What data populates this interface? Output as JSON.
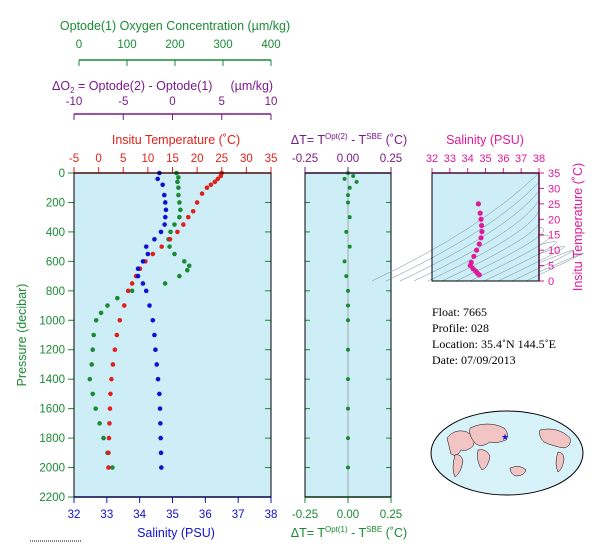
{
  "colors": {
    "oxygen": "#1a8a35",
    "doxygen": "#7a1a8a",
    "temperature": "#e0201a",
    "salinity": "#1010d0",
    "dt": "#1a8a35",
    "ts": "#e0189a",
    "panel": "#cdeef7"
  },
  "top_axes": {
    "oxygen": {
      "title": "Optode(1) Oxygen Concentration (µm/kg)",
      "ticks": [
        "0",
        "100",
        "200",
        "300",
        "400"
      ]
    },
    "doxygen": {
      "title_prefix": "ΔO",
      "title_sub": "2",
      "title_mid": " = Optode(2) - Optode(1)",
      "title_unit": "(µm/kg)",
      "ticks": [
        "-10",
        "-5",
        "0",
        "5",
        "10"
      ]
    }
  },
  "main_panel": {
    "temp_title": "Insitu Temperature (˚C)",
    "temp_ticks": [
      "-5",
      "0",
      "5",
      "10",
      "15",
      "20",
      "25",
      "30",
      "35"
    ],
    "pressure_label": "Pressure (decibar)",
    "pressure_ticks": [
      "0",
      "200",
      "400",
      "600",
      "800",
      "1000",
      "1200",
      "1400",
      "1600",
      "1800",
      "2000",
      "2200"
    ],
    "sal_label": "Salinity (PSU)",
    "sal_ticks": [
      "32",
      "33",
      "34",
      "35",
      "36",
      "37",
      "38"
    ]
  },
  "dt_panel": {
    "top_title_prefix": "ΔT= T",
    "top_sup1": "Opt(2)",
    "top_mid": " - T",
    "top_sup2": "SBE",
    "top_suffix": " (˚C)",
    "top_ticks": [
      "-0.25",
      "0.00",
      "0.25"
    ],
    "bottom_title_prefix": "ΔT= T",
    "bottom_sup1": "Opt(1)",
    "bottom_mid": " - T",
    "bottom_sup2": "SBE",
    "bottom_suffix": " (˚C)",
    "bottom_ticks": [
      "-0.25",
      "0.00",
      "0.25"
    ]
  },
  "ts_panel": {
    "title": "Salinity (PSU)",
    "sal_ticks": [
      "32",
      "33",
      "34",
      "35",
      "36",
      "37",
      "38"
    ],
    "temp_label": "Insitu Temperature (˚C)",
    "temp_ticks": [
      "0",
      "5",
      "10",
      "15",
      "20",
      "25",
      "30",
      "35"
    ]
  },
  "info": {
    "float": "Float:  7665",
    "profile": "Profile:  028",
    "location": "Location:  35.4˚N  144.5˚E",
    "date": "Date:  07/09/2013"
  },
  "chart_data": {
    "type": "scatter",
    "title": "",
    "ylabel": "Pressure (decibar)",
    "ylim": [
      2200,
      0
    ],
    "series": [
      {
        "name": "Insitu Temperature (˚C)",
        "axis_range": [
          -5,
          35
        ],
        "points": [
          [
            0,
            25
          ],
          [
            20,
            24.8
          ],
          [
            40,
            24.2
          ],
          [
            60,
            23.6
          ],
          [
            80,
            22.8
          ],
          [
            100,
            22
          ],
          [
            140,
            21
          ],
          [
            200,
            20
          ],
          [
            260,
            19.2
          ],
          [
            300,
            18.2
          ],
          [
            350,
            17.2
          ],
          [
            400,
            16
          ],
          [
            450,
            14.5
          ],
          [
            500,
            12.8
          ],
          [
            550,
            11
          ],
          [
            600,
            9.5
          ],
          [
            650,
            8.4
          ],
          [
            700,
            7.6
          ],
          [
            750,
            6.8
          ],
          [
            800,
            6.0
          ],
          [
            900,
            5.2
          ],
          [
            1000,
            4.3
          ],
          [
            1100,
            3.7
          ],
          [
            1200,
            3.3
          ],
          [
            1300,
            2.9
          ],
          [
            1400,
            2.6
          ],
          [
            1500,
            2.4
          ],
          [
            1600,
            2.3
          ],
          [
            1700,
            2.2
          ],
          [
            1800,
            2.1
          ],
          [
            1900,
            2.0
          ],
          [
            2000,
            2.0
          ]
        ]
      },
      {
        "name": "Salinity (PSU)",
        "axis_range": [
          32,
          38
        ],
        "points": [
          [
            0,
            34.6
          ],
          [
            40,
            34.55
          ],
          [
            80,
            34.7
          ],
          [
            150,
            34.75
          ],
          [
            200,
            34.78
          ],
          [
            250,
            34.8
          ],
          [
            300,
            34.78
          ],
          [
            350,
            34.76
          ],
          [
            400,
            34.65
          ],
          [
            450,
            34.45
          ],
          [
            500,
            34.2
          ],
          [
            550,
            34.25
          ],
          [
            600,
            34.1
          ],
          [
            650,
            33.95
          ],
          [
            700,
            33.95
          ],
          [
            750,
            34.1
          ],
          [
            800,
            34.2
          ],
          [
            900,
            34.3
          ],
          [
            1000,
            34.4
          ],
          [
            1100,
            34.45
          ],
          [
            1200,
            34.48
          ],
          [
            1300,
            34.52
          ],
          [
            1400,
            34.56
          ],
          [
            1500,
            34.6
          ],
          [
            1600,
            34.62
          ],
          [
            1700,
            34.63
          ],
          [
            1800,
            34.64
          ],
          [
            1900,
            34.65
          ],
          [
            2000,
            34.66
          ]
        ]
      },
      {
        "name": "Optode(1) Oxygen Concentration (µm/kg)",
        "axis_range": [
          0,
          400
        ],
        "points": [
          [
            0,
            208
          ],
          [
            30,
            212
          ],
          [
            60,
            210
          ],
          [
            100,
            212
          ],
          [
            150,
            212
          ],
          [
            200,
            214
          ],
          [
            250,
            216
          ],
          [
            300,
            214
          ],
          [
            350,
            204
          ],
          [
            400,
            196
          ],
          [
            450,
            192
          ],
          [
            500,
            194
          ],
          [
            550,
            204
          ],
          [
            600,
            224
          ],
          [
            630,
            234
          ],
          [
            660,
            230
          ],
          [
            700,
            214
          ],
          [
            750,
            185
          ],
          [
            800,
            118
          ],
          [
            850,
            88
          ],
          [
            900,
            68
          ],
          [
            950,
            55
          ],
          [
            1000,
            45
          ],
          [
            1100,
            40
          ],
          [
            1200,
            38
          ],
          [
            1300,
            36
          ],
          [
            1400,
            32
          ],
          [
            1500,
            38
          ],
          [
            1600,
            44
          ],
          [
            1700,
            52
          ],
          [
            1800,
            60
          ],
          [
            1900,
            68
          ],
          [
            2000,
            78
          ]
        ]
      },
      {
        "name": "ΔT= T Opt(2) - T SBE (˚C)",
        "axis_range": [
          -0.25,
          0.25
        ],
        "points": [
          [
            0,
            0.0
          ],
          [
            20,
            0.03
          ],
          [
            40,
            -0.02
          ],
          [
            60,
            0.05
          ],
          [
            100,
            0.01
          ],
          [
            150,
            0.0
          ],
          [
            200,
            0.0
          ],
          [
            300,
            0.01
          ],
          [
            400,
            -0.01
          ],
          [
            500,
            0.01
          ],
          [
            600,
            -0.02
          ],
          [
            700,
            -0.01
          ],
          [
            800,
            0.0
          ],
          [
            900,
            0.0
          ],
          [
            1000,
            0.0
          ],
          [
            1200,
            0.0
          ],
          [
            1400,
            0.0
          ],
          [
            1600,
            0.0
          ],
          [
            1800,
            0.0
          ],
          [
            2000,
            0.0
          ]
        ]
      },
      {
        "name": "Salinity (PSU) vs Insitu Temperature (˚C)",
        "axis_x": [
          32,
          38
        ],
        "axis_y": [
          0,
          35
        ],
        "points": [
          [
            34.6,
            25
          ],
          [
            34.7,
            22
          ],
          [
            34.75,
            20
          ],
          [
            34.78,
            18
          ],
          [
            34.8,
            16
          ],
          [
            34.75,
            14
          ],
          [
            34.65,
            12
          ],
          [
            34.5,
            10
          ],
          [
            34.35,
            8
          ],
          [
            34.2,
            6
          ],
          [
            34.15,
            5
          ],
          [
            34.3,
            4
          ],
          [
            34.45,
            3.2
          ],
          [
            34.55,
            2.5
          ],
          [
            34.65,
            2.0
          ]
        ]
      }
    ]
  }
}
